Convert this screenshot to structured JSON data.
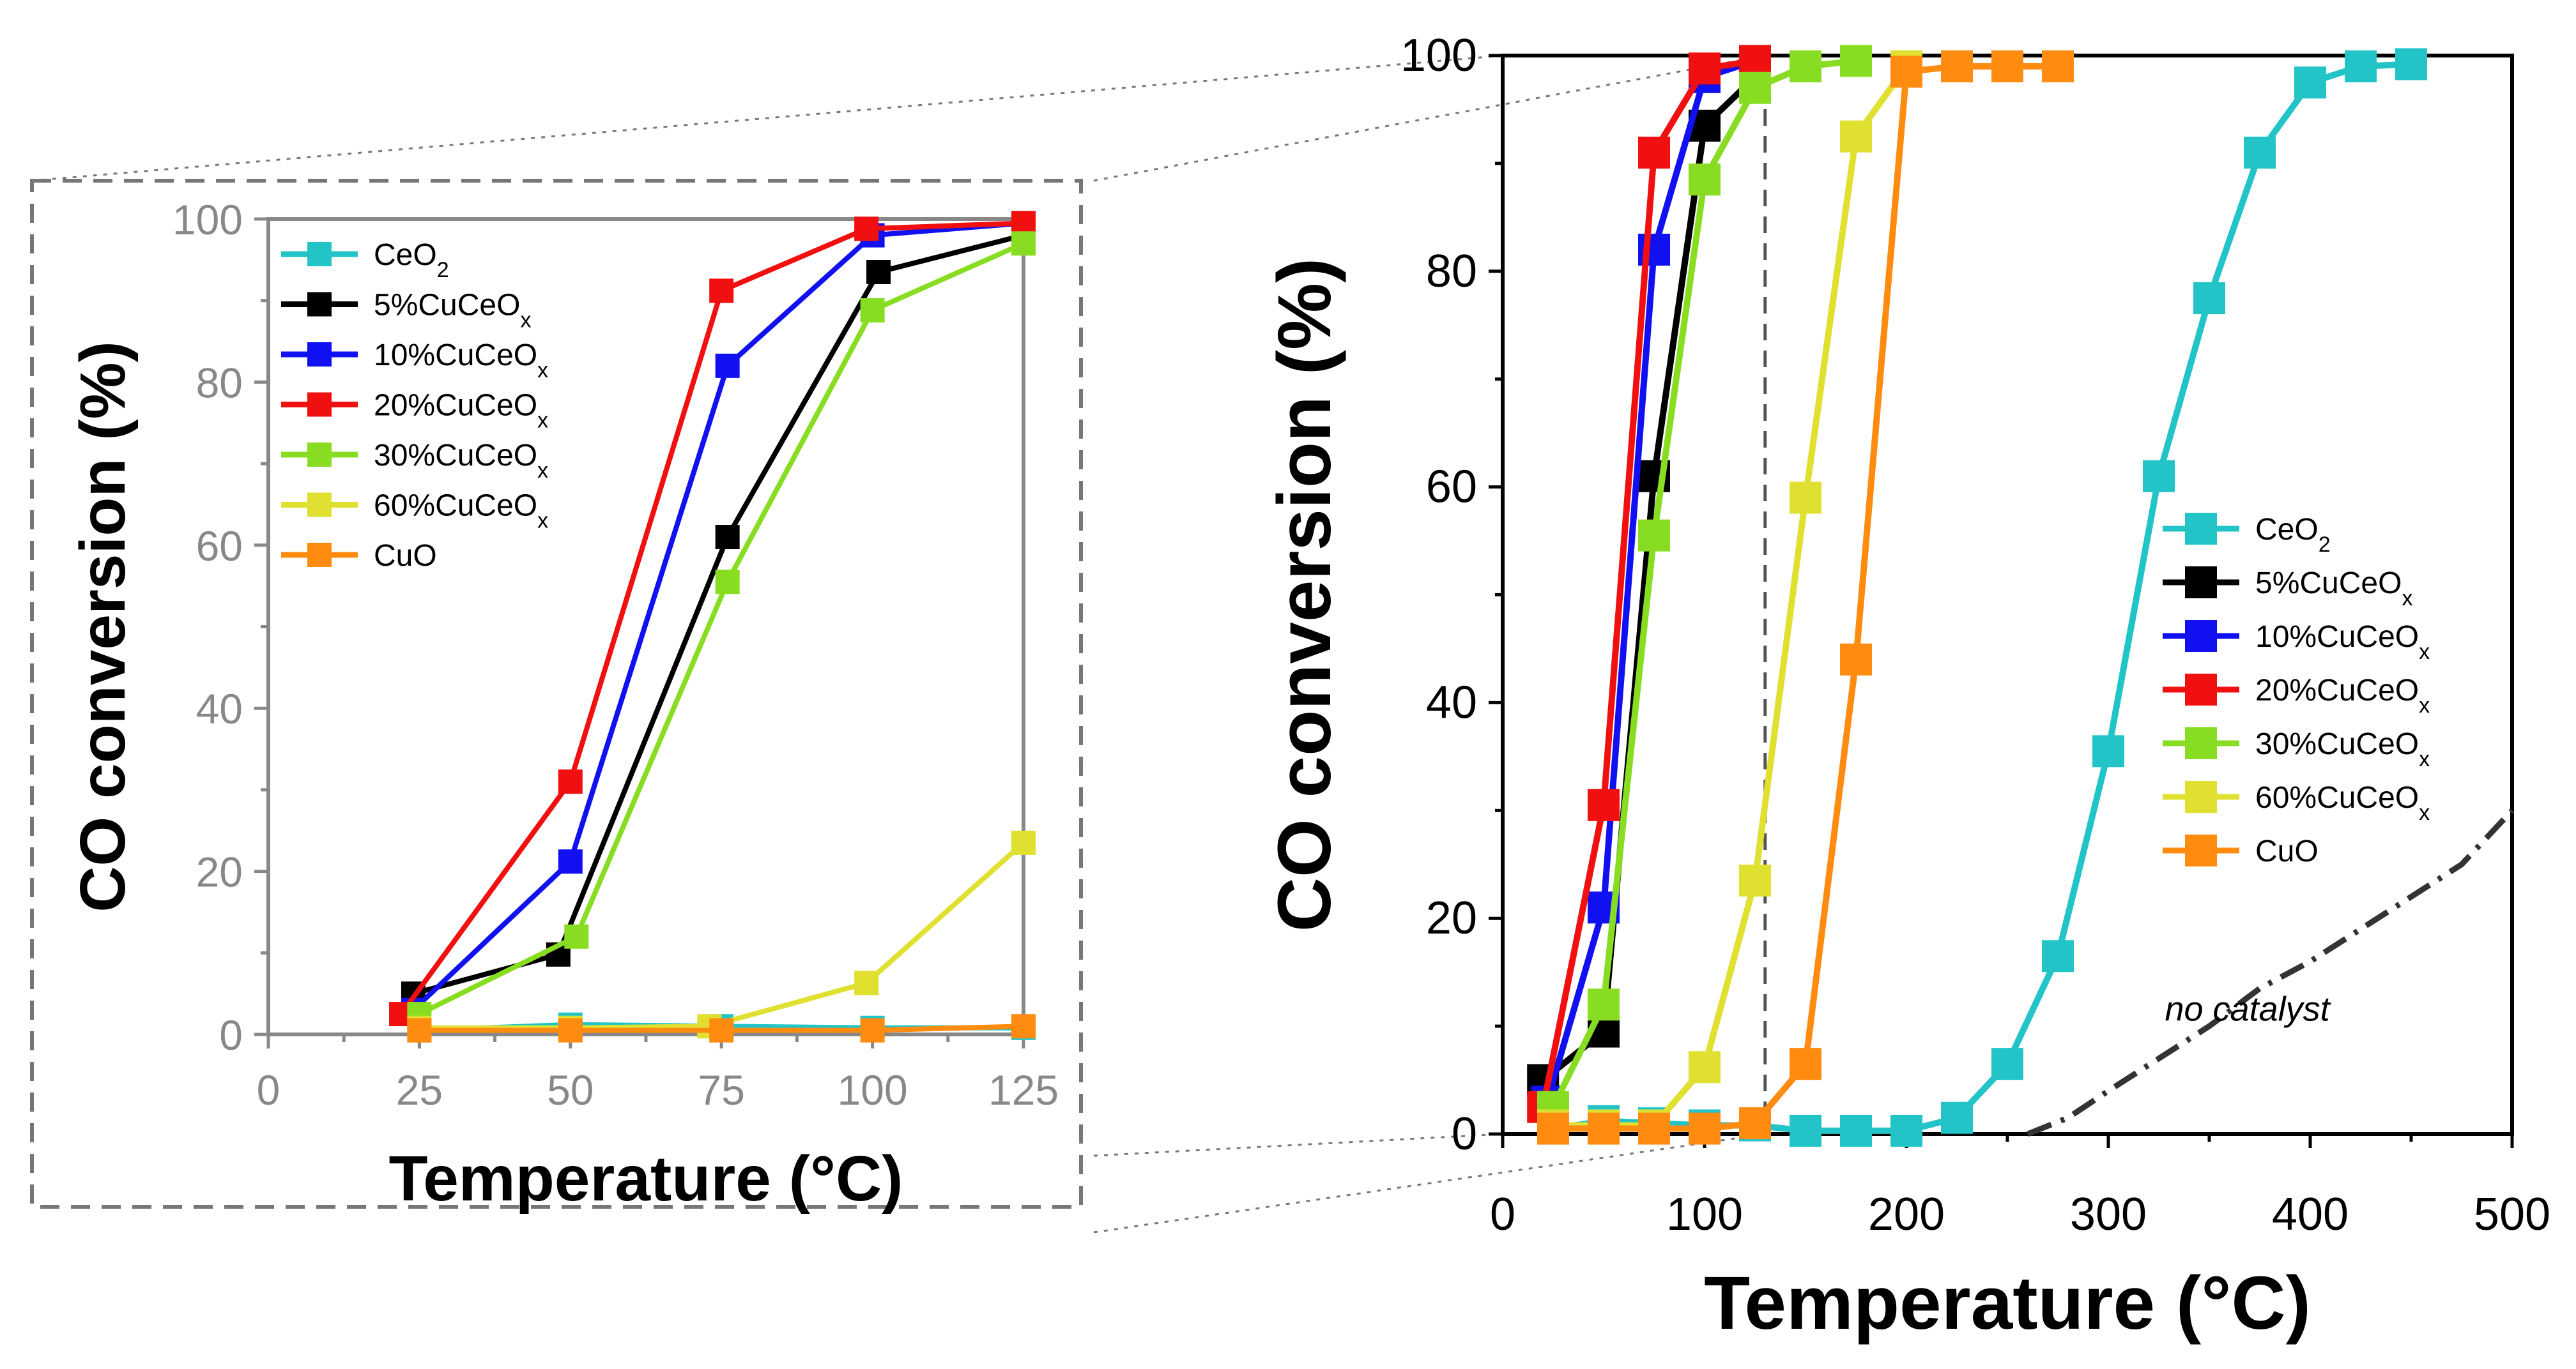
{
  "chart_data": [
    {
      "id": "main",
      "type": "line",
      "xlabel": "Temperature (°C)",
      "ylabel": "CO conversion (%)",
      "xlim": [
        0,
        500
      ],
      "ylim": [
        0,
        100
      ],
      "xticks": [
        0,
        100,
        200,
        300,
        400,
        500
      ],
      "yticks": [
        0,
        20,
        40,
        60,
        80,
        100
      ],
      "legend_position": "middle-right",
      "series": [
        {
          "name": "CeO",
          "sub": "2",
          "color": "#22C4C8",
          "x": [
            25,
            50,
            75,
            100,
            125,
            150,
            175,
            200,
            225,
            250,
            275,
            300,
            325,
            350,
            375,
            400,
            425,
            450
          ],
          "y": [
            0.5,
            1.2,
            1.0,
            0.8,
            0.8,
            0.3,
            0.3,
            0.3,
            1.5,
            6.5,
            16.5,
            35.5,
            61,
            77.5,
            91,
            97.5,
            99,
            99.2
          ]
        },
        {
          "name": "5%CuCeO",
          "sub": "x",
          "color": "#000000",
          "x": [
            20,
            50,
            75,
            100,
            125
          ],
          "y": [
            5,
            9.5,
            61,
            93.5,
            98
          ]
        },
        {
          "name": "10%CuCeO",
          "sub": "x",
          "color": "#1010F0",
          "x": [
            22,
            50,
            75,
            100,
            125
          ],
          "y": [
            3,
            21,
            82,
            98,
            99.5
          ]
        },
        {
          "name": "20%CuCeO",
          "sub": "x",
          "color": "#F01010",
          "x": [
            20,
            50,
            75,
            100,
            125
          ],
          "y": [
            2.5,
            30.5,
            91,
            98.8,
            99.5
          ]
        },
        {
          "name": "30%CuCeO",
          "sub": "x",
          "color": "#88DD22",
          "x": [
            25,
            50,
            75,
            100,
            125,
            150,
            175
          ],
          "y": [
            2.5,
            12,
            55.5,
            88.5,
            97,
            99,
            99.5
          ]
        },
        {
          "name": "60%CuCeO",
          "sub": "x",
          "color": "#E0E030",
          "x": [
            25,
            50,
            75,
            100,
            125,
            150,
            175,
            200
          ],
          "y": [
            0.8,
            0.8,
            0.8,
            6.2,
            23.5,
            59,
            92.5,
            99
          ]
        },
        {
          "name": "CuO",
          "sub": "",
          "color": "#FF8C10",
          "x": [
            25,
            50,
            75,
            100,
            125,
            150,
            175,
            200,
            225,
            250,
            275
          ],
          "y": [
            0.5,
            0.5,
            0.5,
            0.5,
            1.0,
            6.5,
            44,
            98.5,
            99,
            99,
            99
          ]
        }
      ],
      "reference_curve": {
        "label": "no catalyst",
        "x": [
          260,
          280,
          300,
          325,
          350,
          375,
          400,
          425,
          450,
          475,
          500
        ],
        "y": [
          0,
          1.5,
          4,
          7,
          10,
          13.5,
          16,
          19,
          22,
          25,
          30
        ]
      },
      "zoom_region": {
        "x": [
          0,
          130
        ],
        "y": [
          0,
          100
        ]
      }
    },
    {
      "id": "inset",
      "type": "line",
      "xlabel": "Temperature (°C)",
      "ylabel": "CO conversion (%)",
      "xlim": [
        0,
        125
      ],
      "ylim": [
        0,
        100
      ],
      "xticks": [
        0,
        25,
        50,
        75,
        100,
        125
      ],
      "yticks": [
        0,
        20,
        40,
        60,
        80,
        100
      ],
      "legend_position": "top-left",
      "series": [
        {
          "name": "CeO",
          "sub": "2",
          "color": "#22C4C8",
          "x": [
            25,
            50,
            75,
            100,
            125
          ],
          "y": [
            0.5,
            1.2,
            1.0,
            0.8,
            0.8
          ]
        },
        {
          "name": "5%CuCeO",
          "sub": "x",
          "color": "#000000",
          "x": [
            24,
            48,
            76,
            101,
            125
          ],
          "y": [
            5,
            9.8,
            61,
            93.5,
            98
          ]
        },
        {
          "name": "10%CuCeO",
          "sub": "x",
          "color": "#1010F0",
          "x": [
            24,
            50,
            76,
            100,
            125
          ],
          "y": [
            3,
            21.2,
            82,
            98,
            99.5
          ]
        },
        {
          "name": "20%CuCeO",
          "sub": "x",
          "color": "#F01010",
          "x": [
            22,
            50,
            75,
            99,
            125
          ],
          "y": [
            2.5,
            31,
            91.2,
            98.8,
            99.5
          ]
        },
        {
          "name": "30%CuCeO",
          "sub": "x",
          "color": "#88DD22",
          "x": [
            25,
            51,
            76,
            100,
            125
          ],
          "y": [
            2.5,
            12,
            55.5,
            88.8,
            97
          ]
        },
        {
          "name": "60%CuCeO",
          "sub": "x",
          "color": "#E0E030",
          "x": [
            25,
            50,
            73,
            99,
            125
          ],
          "y": [
            0.8,
            0.8,
            1.0,
            6.3,
            23.5
          ]
        },
        {
          "name": "CuO",
          "sub": "",
          "color": "#FF8C10",
          "x": [
            25,
            50,
            75,
            100,
            125
          ],
          "y": [
            0.5,
            0.5,
            0.5,
            0.5,
            1.0
          ]
        }
      ]
    }
  ]
}
